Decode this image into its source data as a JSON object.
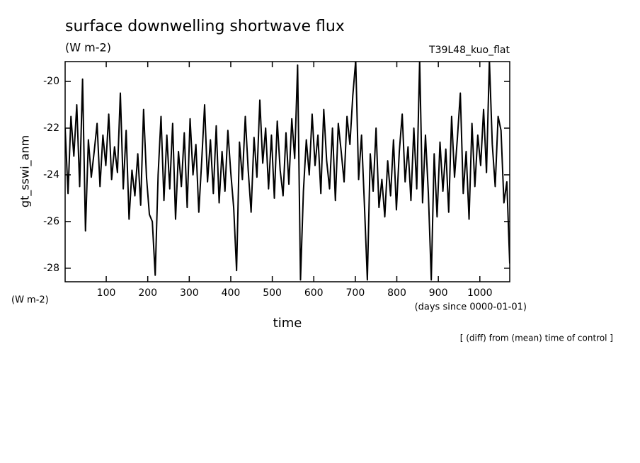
{
  "chart_data": {
    "type": "line",
    "title": "surface downwelling shortwave flux",
    "subtitle": "(W m-2)",
    "annotation": "T39L48_kuo_flat",
    "ylabel": "gt_sswi_anm",
    "yunit": "(W m-2)",
    "xunit": "(days since 0000-01-01)",
    "xlabel": "time",
    "footnote": "[ (diff) from (mean) time of control ]",
    "xlim": [
      1,
      1072
    ],
    "ylim": [
      -28.58,
      -19.15
    ],
    "xticks": [
      100,
      200,
      300,
      400,
      500,
      600,
      700,
      800,
      900,
      1000
    ],
    "yticks": [
      -28,
      -26,
      -24,
      -22,
      -20
    ],
    "x": [
      1,
      8,
      15,
      22,
      29,
      36,
      43,
      50,
      57,
      64,
      71,
      78,
      85,
      92,
      99,
      106,
      113,
      120,
      127,
      134,
      141,
      148,
      155,
      162,
      169,
      176,
      183,
      190,
      197,
      204,
      211,
      218,
      225,
      232,
      239,
      246,
      253,
      260,
      267,
      274,
      281,
      288,
      295,
      302,
      309,
      316,
      323,
      330,
      337,
      344,
      351,
      358,
      365,
      372,
      379,
      386,
      393,
      400,
      407,
      414,
      421,
      428,
      435,
      442,
      449,
      456,
      463,
      470,
      477,
      484,
      491,
      498,
      505,
      512,
      519,
      526,
      533,
      540,
      547,
      554,
      561,
      568,
      575,
      582,
      589,
      596,
      603,
      610,
      617,
      624,
      631,
      638,
      645,
      652,
      659,
      666,
      673,
      680,
      687,
      694,
      701,
      708,
      715,
      722,
      729,
      736,
      743,
      750,
      757,
      764,
      771,
      778,
      785,
      792,
      799,
      806,
      813,
      820,
      827,
      834,
      841,
      848,
      855,
      862,
      869,
      876,
      883,
      890,
      897,
      904,
      911,
      918,
      925,
      932,
      939,
      946,
      953,
      960,
      967,
      974,
      981,
      988,
      995,
      1002,
      1009,
      1016,
      1023,
      1030,
      1037,
      1044,
      1051,
      1058,
      1065,
      1072
    ],
    "series": [
      {
        "name": "gt_sswi_anm",
        "color": "#000000",
        "values": [
          -22.0,
          -24.8,
          -21.5,
          -23.2,
          -21.0,
          -24.5,
          -19.9,
          -26.4,
          -22.5,
          -24.1,
          -23.0,
          -21.8,
          -24.5,
          -22.3,
          -23.6,
          -21.4,
          -24.2,
          -22.8,
          -23.9,
          -20.5,
          -24.6,
          -22.1,
          -25.9,
          -23.8,
          -24.9,
          -23.1,
          -25.3,
          -21.2,
          -24.1,
          -25.7,
          -26.0,
          -28.3,
          -24.0,
          -21.5,
          -25.1,
          -22.3,
          -24.6,
          -21.8,
          -25.9,
          -23.0,
          -24.5,
          -22.2,
          -25.4,
          -21.6,
          -24.0,
          -22.7,
          -25.6,
          -23.4,
          -21.0,
          -24.3,
          -22.5,
          -24.8,
          -21.9,
          -25.2,
          -23.0,
          -24.7,
          -22.1,
          -23.9,
          -25.4,
          -28.1,
          -22.6,
          -24.2,
          -21.5,
          -23.8,
          -25.6,
          -22.4,
          -24.1,
          -20.8,
          -23.5,
          -22.0,
          -24.6,
          -22.3,
          -25.0,
          -21.7,
          -23.8,
          -24.9,
          -22.2,
          -24.4,
          -21.6,
          -23.3,
          -19.3,
          -28.5,
          -24.7,
          -22.5,
          -24.0,
          -21.4,
          -23.6,
          -22.3,
          -24.8,
          -21.2,
          -23.4,
          -24.6,
          -22.0,
          -25.1,
          -21.8,
          -23.0,
          -24.3,
          -21.5,
          -22.7,
          -20.6,
          -19.1,
          -24.2,
          -22.3,
          -25.3,
          -28.5,
          -23.1,
          -24.7,
          -22.0,
          -25.4,
          -24.2,
          -25.8,
          -23.4,
          -24.9,
          -22.5,
          -25.5,
          -23.0,
          -21.4,
          -24.3,
          -22.8,
          -25.1,
          -22.0,
          -24.6,
          -19.1,
          -25.2,
          -22.3,
          -24.8,
          -28.5,
          -23.1,
          -25.8,
          -22.6,
          -24.7,
          -22.9,
          -25.6,
          -21.5,
          -24.1,
          -22.4,
          -20.5,
          -24.8,
          -23.0,
          -25.9,
          -21.8,
          -24.5,
          -22.3,
          -23.6,
          -21.2,
          -23.9,
          -19.1,
          -22.7,
          -24.5,
          -21.5,
          -22.1,
          -25.2,
          -24.3,
          -27.8
        ]
      }
    ]
  }
}
